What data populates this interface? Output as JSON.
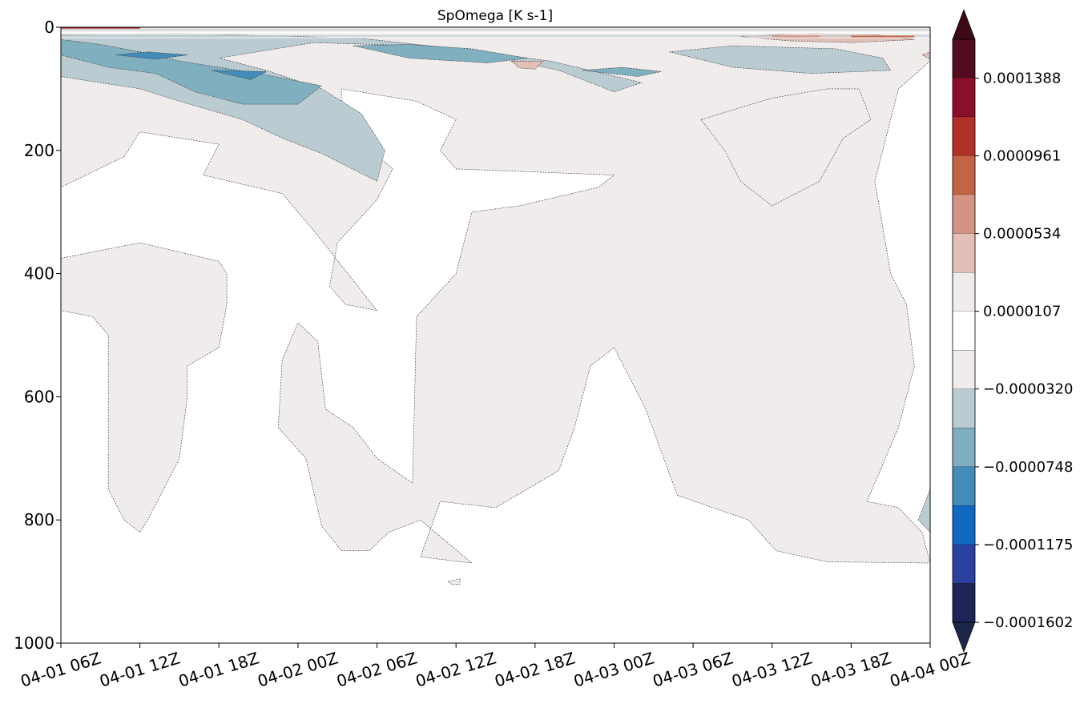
{
  "chart_data": {
    "type": "heatmap",
    "title": "SpOmega [K s-1]",
    "xlabel": "",
    "ylabel": "",
    "x_ticks": [
      "04-01 06Z",
      "04-01 12Z",
      "04-01 18Z",
      "04-02 00Z",
      "04-02 06Z",
      "04-02 12Z",
      "04-02 18Z",
      "04-03 00Z",
      "04-03 06Z",
      "04-03 12Z",
      "04-03 18Z",
      "04-04 00Z"
    ],
    "xlim": [
      "04-01 06Z",
      "04-04 00Z"
    ],
    "y_ticks": [
      0,
      200,
      400,
      600,
      800,
      1000
    ],
    "ylim": [
      1000,
      0
    ],
    "y_inverted": true,
    "colorbar": {
      "tick_labels": [
        "0.0001388",
        "0.0000961",
        "0.0000534",
        "0.0000107",
        "−0.0000320",
        "−0.0000748",
        "−0.0001175",
        "−0.0001602"
      ],
      "tick_values": [
        0.0001388,
        9.61e-05,
        5.34e-05,
        1.07e-05,
        -3.2e-05,
        -7.48e-05,
        -0.0001175,
        -0.0001602
      ],
      "levels_top_to_bottom": [
        0.0001602,
        0.0001388,
        0.0001175,
        9.61e-05,
        7.48e-05,
        5.34e-05,
        3.2e-05,
        1.07e-05,
        -1.07e-05,
        -3.2e-05,
        -5.34e-05,
        -7.48e-05,
        -9.61e-05,
        -0.0001175,
        -0.0001388,
        -0.0001602
      ],
      "colors_top_to_bottom": [
        "#520b1f",
        "#8a0f2b",
        "#b0302a",
        "#c46446",
        "#d39583",
        "#e2bfb7",
        "#f0ecec",
        "#ffffff",
        "#f0ecec",
        "#bacbd2",
        "#80afbf",
        "#448bb9",
        "#1068c0",
        "#2b419f",
        "#1d2557"
      ],
      "extend": "both",
      "extend_max_color": "#3c0a14",
      "extend_min_color": "#1d2647"
    },
    "regions": [
      {
        "name": "upper-band-light",
        "color": "#f0ecec",
        "time_depth": [
          [
            0,
            0
          ],
          [
            11,
            0
          ],
          [
            11,
            55
          ],
          [
            10.6,
            100
          ],
          [
            10.3,
            250
          ],
          [
            10.5,
            400
          ],
          [
            10.7,
            450
          ],
          [
            10.8,
            550
          ],
          [
            10.6,
            650
          ],
          [
            10.2,
            770
          ],
          [
            10.6,
            780
          ],
          [
            10.9,
            820
          ],
          [
            11,
            870
          ],
          [
            9.7,
            868
          ],
          [
            9.05,
            850
          ],
          [
            8.7,
            800
          ],
          [
            7.8,
            760
          ],
          [
            7.4,
            620
          ],
          [
            7.0,
            520
          ],
          [
            6.7,
            550
          ],
          [
            6.5,
            650
          ],
          [
            6.3,
            720
          ],
          [
            5.5,
            780
          ],
          [
            4.8,
            770
          ],
          [
            4.55,
            860
          ],
          [
            5.2,
            870
          ],
          [
            4.55,
            800
          ],
          [
            4.15,
            820
          ],
          [
            3.9,
            850
          ],
          [
            3.55,
            850
          ],
          [
            3.3,
            810
          ],
          [
            3.1,
            700
          ],
          [
            2.75,
            650
          ],
          [
            2.8,
            540
          ],
          [
            3.0,
            480
          ],
          [
            3.25,
            510
          ],
          [
            3.35,
            620
          ],
          [
            3.7,
            650
          ],
          [
            4.0,
            700
          ],
          [
            4.45,
            740
          ],
          [
            4.5,
            470
          ],
          [
            5.0,
            400
          ],
          [
            5.2,
            300
          ],
          [
            5.8,
            290
          ],
          [
            6.8,
            260
          ],
          [
            7.0,
            240
          ],
          [
            5.0,
            230
          ],
          [
            4.8,
            200
          ],
          [
            5.0,
            150
          ],
          [
            4.5,
            120
          ],
          [
            3.55,
            100
          ],
          [
            3.55,
            160
          ],
          [
            4.2,
            230
          ],
          [
            4.0,
            280
          ],
          [
            3.5,
            350
          ],
          [
            3.4,
            420
          ],
          [
            3.6,
            450
          ],
          [
            4.0,
            460
          ],
          [
            3.2,
            330
          ],
          [
            2.8,
            270
          ],
          [
            1.8,
            240
          ],
          [
            2.0,
            190
          ],
          [
            1.0,
            170
          ],
          [
            0.8,
            210
          ],
          [
            0,
            260
          ]
        ]
      },
      {
        "name": "upper-band-blue-light",
        "color": "#bacbd2",
        "time_depth": [
          [
            0,
            12
          ],
          [
            0,
            80
          ],
          [
            1,
            100
          ],
          [
            1.5,
            120
          ],
          [
            2.3,
            150
          ],
          [
            2.8,
            180
          ],
          [
            3.3,
            205
          ],
          [
            4.0,
            250
          ],
          [
            4.1,
            200
          ],
          [
            3.8,
            140
          ],
          [
            3.3,
            100
          ],
          [
            2.6,
            70
          ],
          [
            2.0,
            50
          ],
          [
            3.2,
            25
          ],
          [
            4.5,
            30
          ],
          [
            5.4,
            45
          ],
          [
            6.3,
            70
          ],
          [
            7.0,
            105
          ],
          [
            7.35,
            90
          ],
          [
            6.2,
            55
          ],
          [
            5.0,
            35
          ],
          [
            3.8,
            18
          ],
          [
            1.5,
            10
          ]
        ]
      },
      {
        "name": "upper-band-blue-mid",
        "color": "#80afbf",
        "time_depth": [
          [
            0,
            20
          ],
          [
            0,
            45
          ],
          [
            0.6,
            65
          ],
          [
            1.2,
            75
          ],
          [
            1.7,
            105
          ],
          [
            2.3,
            125
          ],
          [
            3.0,
            125
          ],
          [
            3.3,
            95
          ],
          [
            2.5,
            75
          ],
          [
            1.5,
            55
          ],
          [
            1.0,
            40
          ],
          [
            0.5,
            28
          ]
        ]
      },
      {
        "name": "upper-band-blue-mid-2",
        "color": "#80afbf",
        "time_depth": [
          [
            3.7,
            30
          ],
          [
            4.4,
            50
          ],
          [
            5.4,
            58
          ],
          [
            5.9,
            50
          ],
          [
            5.2,
            35
          ],
          [
            4.4,
            28
          ]
        ]
      },
      {
        "name": "upper-band-blue-mid-3",
        "color": "#80afbf",
        "time_depth": [
          [
            6.6,
            70
          ],
          [
            7.3,
            80
          ],
          [
            7.6,
            72
          ],
          [
            7.1,
            65
          ]
        ]
      },
      {
        "name": "upper-band-blue-dark",
        "color": "#448bb9",
        "time_depth": [
          [
            0.7,
            45
          ],
          [
            1.2,
            52
          ],
          [
            1.6,
            45
          ],
          [
            1.1,
            40
          ]
        ]
      },
      {
        "name": "upper-band-blue-dark-2",
        "color": "#448bb9",
        "time_depth": [
          [
            1.9,
            70
          ],
          [
            2.4,
            85
          ],
          [
            2.6,
            72
          ]
        ]
      },
      {
        "name": "upper-right-blue",
        "color": "#bacbd2",
        "time_depth": [
          [
            7.7,
            40
          ],
          [
            8.5,
            30
          ],
          [
            9.8,
            35
          ],
          [
            10.4,
            50
          ],
          [
            10.5,
            70
          ],
          [
            9.5,
            75
          ],
          [
            8.5,
            65
          ]
        ]
      },
      {
        "name": "upper-right-pink",
        "color": "#e2bfb7",
        "time_depth": [
          [
            8.6,
            15
          ],
          [
            9.5,
            10
          ],
          [
            10.3,
            12
          ],
          [
            10.8,
            20
          ],
          [
            10.0,
            25
          ],
          [
            9.2,
            22
          ]
        ]
      },
      {
        "name": "upper-right-pink-2",
        "color": "#e2bfb7",
        "time_depth": [
          [
            5.7,
            55
          ],
          [
            6.1,
            55
          ],
          [
            6.0,
            68
          ],
          [
            5.8,
            66
          ]
        ]
      },
      {
        "name": "upper-edge-pink",
        "color": "#e2bfb7",
        "time_depth": [
          [
            10.9,
            45
          ],
          [
            11,
            40
          ],
          [
            11,
            52
          ]
        ]
      },
      {
        "name": "middle-left-lobe",
        "color": "#f0ecec",
        "time_depth": [
          [
            0,
            375
          ],
          [
            1.0,
            350
          ],
          [
            2.0,
            380
          ],
          [
            2.1,
            400
          ],
          [
            2.1,
            450
          ],
          [
            2.0,
            520
          ],
          [
            1.6,
            550
          ],
          [
            1.6,
            600
          ],
          [
            1.5,
            700
          ],
          [
            1.3,
            750
          ],
          [
            1.1,
            800
          ],
          [
            1.0,
            820
          ],
          [
            0.8,
            800
          ],
          [
            0.6,
            750
          ],
          [
            0.6,
            700
          ],
          [
            0.6,
            550
          ],
          [
            0.6,
            500
          ],
          [
            0.4,
            470
          ],
          [
            0,
            460
          ]
        ]
      },
      {
        "name": "middle-right-lobe",
        "color": "#f0ecec",
        "time_depth": [
          [
            8.1,
            150
          ],
          [
            9.0,
            115
          ],
          [
            9.7,
            100
          ],
          [
            10.1,
            100
          ],
          [
            10.25,
            150
          ],
          [
            9.9,
            180
          ],
          [
            9.6,
            250
          ],
          [
            9.0,
            290
          ],
          [
            8.6,
            250
          ],
          [
            8.4,
            200
          ]
        ]
      },
      {
        "name": "bottom-right-blue",
        "color": "#bacbd2",
        "time_depth": [
          [
            10.85,
            800
          ],
          [
            11,
            750
          ],
          [
            11,
            820
          ]
        ]
      },
      {
        "name": "tiny-island",
        "color": "#f0ecec",
        "time_depth": [
          [
            4.9,
            900
          ],
          [
            5.05,
            896
          ],
          [
            5.05,
            904
          ],
          [
            4.95,
            905
          ]
        ]
      }
    ]
  }
}
